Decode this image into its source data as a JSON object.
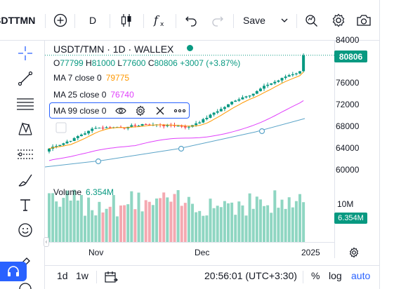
{
  "toolbar": {
    "symbol": "SDTTMN",
    "interval": "D",
    "save_label": "Save"
  },
  "legend": {
    "title": "USDT/TMN · 1D · WALLEX",
    "open": "77799",
    "high": "81000",
    "low": "77600",
    "close": "80806",
    "change": "+3007 (+3.87%)",
    "ma7_label": "MA 7 close 0",
    "ma7_value": "79775",
    "ma25_label": "MA 25 close 0",
    "ma25_value": "76740",
    "ma99_label": "MA 99 close 0",
    "volume_label": "Volume",
    "volume_value": "6.354M"
  },
  "price_axis": {
    "ticks": [
      "84000",
      "76000",
      "72000",
      "68000",
      "64000",
      "60000"
    ],
    "last_price": "80806",
    "volume_tick": "10M",
    "last_volume": "6.354M"
  },
  "time_axis": {
    "labels": [
      "Nov",
      "Dec",
      "2025"
    ]
  },
  "bottombar": {
    "range_1d": "1d",
    "range_1w": "1w",
    "clock": "20:56:01 (UTC+3:30)",
    "percent": "%",
    "log": "log",
    "auto": "auto"
  },
  "colors": {
    "up": "#089981",
    "down": "#f23645",
    "vol_up": "#8fd6c2",
    "vol_down": "#f4a9b1",
    "ma7": "#ff9800",
    "ma25": "#e040fb",
    "ma99": "#5ba4c8",
    "accent": "#2962ff"
  }
}
